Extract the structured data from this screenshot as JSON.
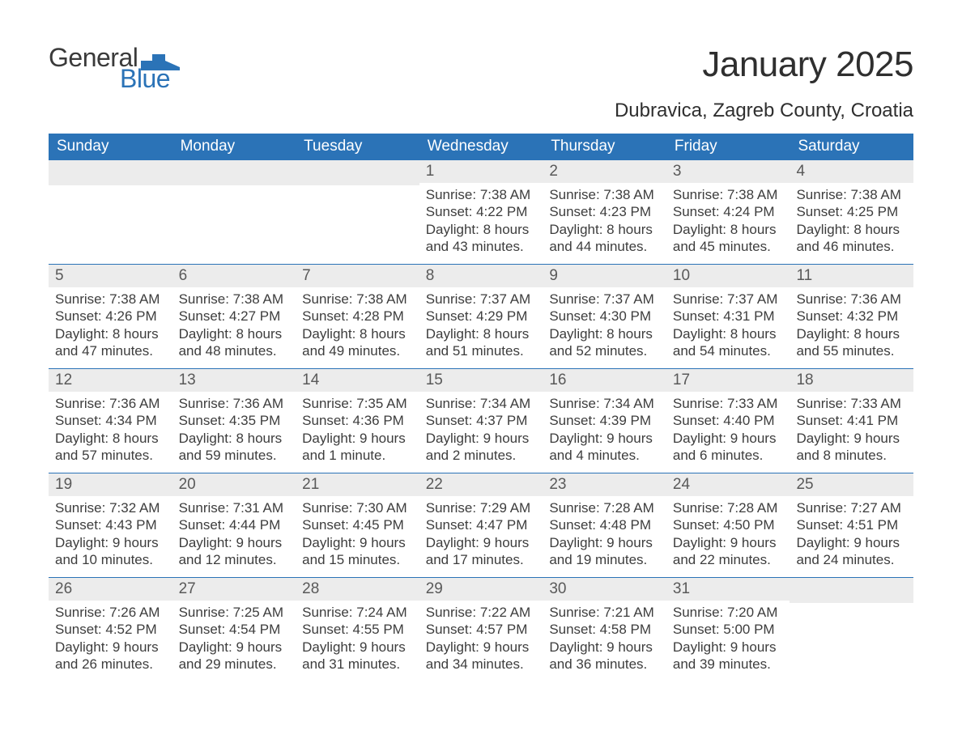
{
  "brand": {
    "text1": "General",
    "text2": "Blue",
    "accent_color": "#2b73b7"
  },
  "title": "January 2025",
  "location": "Dubravica, Zagreb County, Croatia",
  "colors": {
    "header_bg": "#2b73b7",
    "header_text": "#ffffff",
    "daynum_bg": "#ececec",
    "rule": "#2b73b7",
    "body_text": "#3d3d3d"
  },
  "day_headers": [
    "Sunday",
    "Monday",
    "Tuesday",
    "Wednesday",
    "Thursday",
    "Friday",
    "Saturday"
  ],
  "weeks": [
    [
      {
        "blank": true
      },
      {
        "blank": true
      },
      {
        "blank": true
      },
      {
        "n": "1",
        "sunrise": "7:38 AM",
        "sunset": "4:22 PM",
        "daylight": "8 hours and 43 minutes."
      },
      {
        "n": "2",
        "sunrise": "7:38 AM",
        "sunset": "4:23 PM",
        "daylight": "8 hours and 44 minutes."
      },
      {
        "n": "3",
        "sunrise": "7:38 AM",
        "sunset": "4:24 PM",
        "daylight": "8 hours and 45 minutes."
      },
      {
        "n": "4",
        "sunrise": "7:38 AM",
        "sunset": "4:25 PM",
        "daylight": "8 hours and 46 minutes."
      }
    ],
    [
      {
        "n": "5",
        "sunrise": "7:38 AM",
        "sunset": "4:26 PM",
        "daylight": "8 hours and 47 minutes."
      },
      {
        "n": "6",
        "sunrise": "7:38 AM",
        "sunset": "4:27 PM",
        "daylight": "8 hours and 48 minutes."
      },
      {
        "n": "7",
        "sunrise": "7:38 AM",
        "sunset": "4:28 PM",
        "daylight": "8 hours and 49 minutes."
      },
      {
        "n": "8",
        "sunrise": "7:37 AM",
        "sunset": "4:29 PM",
        "daylight": "8 hours and 51 minutes."
      },
      {
        "n": "9",
        "sunrise": "7:37 AM",
        "sunset": "4:30 PM",
        "daylight": "8 hours and 52 minutes."
      },
      {
        "n": "10",
        "sunrise": "7:37 AM",
        "sunset": "4:31 PM",
        "daylight": "8 hours and 54 minutes."
      },
      {
        "n": "11",
        "sunrise": "7:36 AM",
        "sunset": "4:32 PM",
        "daylight": "8 hours and 55 minutes."
      }
    ],
    [
      {
        "n": "12",
        "sunrise": "7:36 AM",
        "sunset": "4:34 PM",
        "daylight": "8 hours and 57 minutes."
      },
      {
        "n": "13",
        "sunrise": "7:36 AM",
        "sunset": "4:35 PM",
        "daylight": "8 hours and 59 minutes."
      },
      {
        "n": "14",
        "sunrise": "7:35 AM",
        "sunset": "4:36 PM",
        "daylight": "9 hours and 1 minute."
      },
      {
        "n": "15",
        "sunrise": "7:34 AM",
        "sunset": "4:37 PM",
        "daylight": "9 hours and 2 minutes."
      },
      {
        "n": "16",
        "sunrise": "7:34 AM",
        "sunset": "4:39 PM",
        "daylight": "9 hours and 4 minutes."
      },
      {
        "n": "17",
        "sunrise": "7:33 AM",
        "sunset": "4:40 PM",
        "daylight": "9 hours and 6 minutes."
      },
      {
        "n": "18",
        "sunrise": "7:33 AM",
        "sunset": "4:41 PM",
        "daylight": "9 hours and 8 minutes."
      }
    ],
    [
      {
        "n": "19",
        "sunrise": "7:32 AM",
        "sunset": "4:43 PM",
        "daylight": "9 hours and 10 minutes."
      },
      {
        "n": "20",
        "sunrise": "7:31 AM",
        "sunset": "4:44 PM",
        "daylight": "9 hours and 12 minutes."
      },
      {
        "n": "21",
        "sunrise": "7:30 AM",
        "sunset": "4:45 PM",
        "daylight": "9 hours and 15 minutes."
      },
      {
        "n": "22",
        "sunrise": "7:29 AM",
        "sunset": "4:47 PM",
        "daylight": "9 hours and 17 minutes."
      },
      {
        "n": "23",
        "sunrise": "7:28 AM",
        "sunset": "4:48 PM",
        "daylight": "9 hours and 19 minutes."
      },
      {
        "n": "24",
        "sunrise": "7:28 AM",
        "sunset": "4:50 PM",
        "daylight": "9 hours and 22 minutes."
      },
      {
        "n": "25",
        "sunrise": "7:27 AM",
        "sunset": "4:51 PM",
        "daylight": "9 hours and 24 minutes."
      }
    ],
    [
      {
        "n": "26",
        "sunrise": "7:26 AM",
        "sunset": "4:52 PM",
        "daylight": "9 hours and 26 minutes."
      },
      {
        "n": "27",
        "sunrise": "7:25 AM",
        "sunset": "4:54 PM",
        "daylight": "9 hours and 29 minutes."
      },
      {
        "n": "28",
        "sunrise": "7:24 AM",
        "sunset": "4:55 PM",
        "daylight": "9 hours and 31 minutes."
      },
      {
        "n": "29",
        "sunrise": "7:22 AM",
        "sunset": "4:57 PM",
        "daylight": "9 hours and 34 minutes."
      },
      {
        "n": "30",
        "sunrise": "7:21 AM",
        "sunset": "4:58 PM",
        "daylight": "9 hours and 36 minutes."
      },
      {
        "n": "31",
        "sunrise": "7:20 AM",
        "sunset": "5:00 PM",
        "daylight": "9 hours and 39 minutes."
      },
      {
        "blank": true
      }
    ]
  ],
  "labels": {
    "sunrise": "Sunrise: ",
    "sunset": "Sunset: ",
    "daylight": "Daylight: "
  }
}
